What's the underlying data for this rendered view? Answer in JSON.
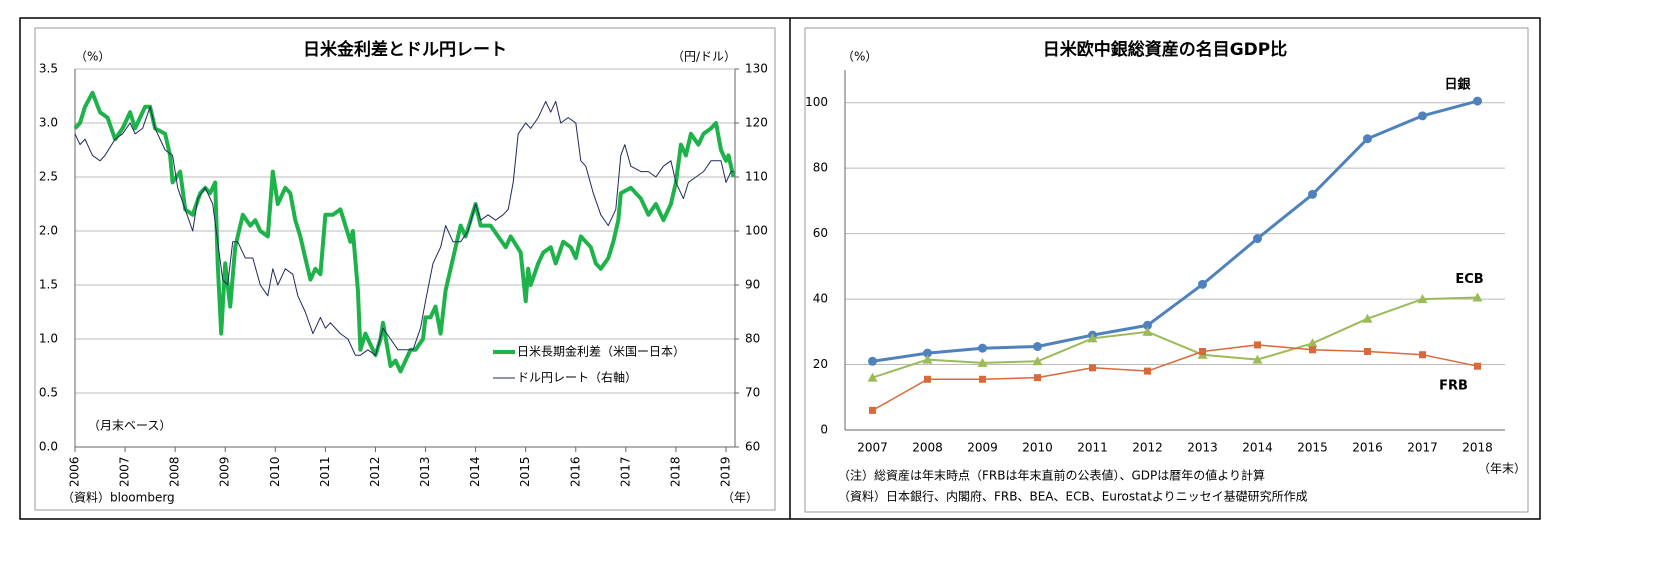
{
  "chart_data": [
    {
      "type": "line",
      "title": "日米金利差とドル円レート",
      "ylabel": "（%）",
      "y2label": "（円/ドル）",
      "xlabel": "（年）",
      "annotations": [
        "（月末ベース）",
        "（資料）bloomberg"
      ],
      "xlim": [
        2006,
        2019.18
      ],
      "xticks": [
        2006,
        2007,
        2008,
        2009,
        2010,
        2011,
        2012,
        2013,
        2014,
        2015,
        2016,
        2017,
        2018,
        2019
      ],
      "ylim": [
        0,
        3.5
      ],
      "yticks": [
        {
          "value": 0,
          "label": "0.0"
        },
        0.5,
        {
          "value": 1,
          "label": "1.0"
        },
        1.5,
        {
          "value": 2,
          "label": "2.0"
        },
        2.5,
        {
          "value": 3,
          "label": "3.0"
        },
        3.5
      ],
      "y2lim": [
        60,
        130
      ],
      "y2ticks": [
        60,
        70,
        80,
        90,
        100,
        110,
        120,
        130
      ],
      "grid": true,
      "series": [
        {
          "name": "日米長期金利差（米国ー日本）",
          "color": "#1db34a",
          "linewidth": 4,
          "axis": "y",
          "x": [
            2006.0,
            2006.1,
            2006.2,
            2006.35,
            2006.5,
            2006.65,
            2006.8,
            2006.95,
            2007.1,
            2007.2,
            2007.4,
            2007.5,
            2007.6,
            2007.8,
            2007.9,
            2007.95,
            2008.1,
            2008.2,
            2008.35,
            2008.5,
            2008.6,
            2008.7,
            2008.8,
            2008.85,
            2008.92,
            2009.0,
            2009.1,
            2009.2,
            2009.35,
            2009.5,
            2009.6,
            2009.7,
            2009.85,
            2009.95,
            2010.05,
            2010.2,
            2010.3,
            2010.4,
            2010.5,
            2010.6,
            2010.7,
            2010.8,
            2010.9,
            2011.0,
            2011.15,
            2011.3,
            2011.4,
            2011.5,
            2011.55,
            2011.65,
            2011.7,
            2011.8,
            2011.9,
            2012.0,
            2012.1,
            2012.15,
            2012.3,
            2012.4,
            2012.5,
            2012.6,
            2012.7,
            2012.8,
            2012.95,
            2013.0,
            2013.1,
            2013.2,
            2013.3,
            2013.4,
            2013.5,
            2013.6,
            2013.7,
            2013.8,
            2013.9,
            2014.0,
            2014.1,
            2014.3,
            2014.45,
            2014.6,
            2014.7,
            2014.9,
            2015.0,
            2015.05,
            2015.1,
            2015.25,
            2015.35,
            2015.5,
            2015.6,
            2015.75,
            2015.9,
            2016.0,
            2016.1,
            2016.2,
            2016.3,
            2016.4,
            2016.5,
            2016.65,
            2016.75,
            2016.85,
            2016.9,
            2017.1,
            2017.3,
            2017.45,
            2017.6,
            2017.75,
            2017.9,
            2018.0,
            2018.1,
            2018.2,
            2018.3,
            2018.45,
            2018.55,
            2018.7,
            2018.8,
            2018.9,
            2019.0,
            2019.05,
            2019.15
          ],
          "values": [
            2.95,
            3.0,
            3.15,
            3.28,
            3.1,
            3.05,
            2.85,
            2.95,
            3.1,
            2.95,
            3.15,
            3.15,
            2.95,
            2.9,
            2.7,
            2.45,
            2.55,
            2.2,
            2.15,
            2.35,
            2.4,
            2.35,
            2.45,
            1.7,
            1.05,
            1.7,
            1.3,
            1.85,
            2.15,
            2.05,
            2.1,
            2.0,
            1.95,
            2.55,
            2.25,
            2.4,
            2.35,
            2.1,
            1.95,
            1.75,
            1.55,
            1.65,
            1.6,
            2.15,
            2.15,
            2.2,
            2.05,
            1.9,
            2.0,
            1.45,
            0.9,
            1.05,
            0.95,
            0.85,
            1.0,
            1.15,
            0.75,
            0.8,
            0.7,
            0.8,
            0.9,
            0.9,
            1.0,
            1.2,
            1.2,
            1.3,
            1.05,
            1.45,
            1.65,
            1.85,
            2.05,
            1.95,
            2.1,
            2.25,
            2.05,
            2.05,
            1.95,
            1.85,
            1.95,
            1.8,
            1.35,
            1.65,
            1.5,
            1.7,
            1.8,
            1.85,
            1.7,
            1.9,
            1.85,
            1.75,
            1.95,
            1.9,
            1.85,
            1.7,
            1.65,
            1.75,
            1.9,
            2.1,
            2.35,
            2.4,
            2.3,
            2.15,
            2.25,
            2.1,
            2.25,
            2.45,
            2.8,
            2.7,
            2.9,
            2.8,
            2.9,
            2.95,
            3.0,
            2.75,
            2.65,
            2.7,
            2.5
          ]
        },
        {
          "name": "ドル円レート（右軸）",
          "color": "#1f2a5c",
          "linewidth": 1,
          "axis": "y2",
          "x": [
            2006.0,
            2006.1,
            2006.2,
            2006.35,
            2006.5,
            2006.6,
            2006.8,
            2006.95,
            2007.1,
            2007.2,
            2007.35,
            2007.5,
            2007.6,
            2007.8,
            2007.95,
            2008.05,
            2008.2,
            2008.35,
            2008.45,
            2008.6,
            2008.75,
            2008.85,
            2008.95,
            2009.05,
            2009.15,
            2009.25,
            2009.4,
            2009.55,
            2009.7,
            2009.85,
            2009.95,
            2010.05,
            2010.2,
            2010.35,
            2010.45,
            2010.6,
            2010.75,
            2010.9,
            2011.0,
            2011.1,
            2011.3,
            2011.45,
            2011.6,
            2011.7,
            2011.85,
            2012.0,
            2012.15,
            2012.3,
            2012.45,
            2012.6,
            2012.75,
            2012.9,
            2013.0,
            2013.15,
            2013.3,
            2013.4,
            2013.55,
            2013.7,
            2013.85,
            2014.0,
            2014.1,
            2014.25,
            2014.4,
            2014.55,
            2014.65,
            2014.75,
            2014.85,
            2015.0,
            2015.1,
            2015.25,
            2015.4,
            2015.5,
            2015.6,
            2015.7,
            2015.85,
            2016.0,
            2016.1,
            2016.2,
            2016.35,
            2016.5,
            2016.65,
            2016.8,
            2016.9,
            2016.98,
            2017.1,
            2017.3,
            2017.45,
            2017.6,
            2017.75,
            2017.9,
            2018.0,
            2018.15,
            2018.25,
            2018.4,
            2018.55,
            2018.7,
            2018.8,
            2018.9,
            2019.0,
            2019.1,
            2019.15
          ],
          "values": [
            118,
            116,
            117,
            114,
            113,
            114,
            117,
            118,
            120,
            118,
            119,
            123,
            119,
            115,
            114,
            108,
            104,
            100,
            106,
            108,
            105,
            98,
            91,
            90,
            98,
            98,
            95,
            95,
            90,
            88,
            93,
            90,
            93,
            92,
            88,
            85,
            81,
            84,
            82,
            83,
            81,
            80,
            77,
            77,
            78,
            77,
            82,
            80,
            78,
            78,
            78,
            82,
            87,
            94,
            97,
            101,
            98,
            98,
            100,
            105,
            102,
            103,
            102,
            103,
            104,
            109,
            118,
            120,
            119,
            121,
            124,
            122,
            124,
            120,
            121,
            120,
            113,
            112,
            107,
            103,
            101,
            104,
            114,
            116,
            112,
            111,
            111,
            110,
            112,
            113,
            109,
            106,
            109,
            110,
            111,
            113,
            113,
            113,
            109,
            111,
            111
          ]
        }
      ]
    },
    {
      "type": "line",
      "title": "日米欧中銀総資産の名目GDP比",
      "ylabel": "（%）",
      "xlabel": "（年末）",
      "annotations": [
        "（注）総資産は年末時点（FRBは年末直前の公表値）、GDPは暦年の値より計算",
        "（資料）日本銀行、内閣府、FRB、BEA、ECB、Eurostatよりニッセイ基礎研究所作成"
      ],
      "categories": [
        "2007",
        "2008",
        "2009",
        "2010",
        "2011",
        "2012",
        "2013",
        "2014",
        "2015",
        "2016",
        "2017",
        "2018"
      ],
      "ylim": [
        0,
        110
      ],
      "yticks": [
        0,
        20,
        40,
        60,
        80,
        100
      ],
      "grid": true,
      "series": [
        {
          "name": "日銀",
          "color": "#4f81bd",
          "marker": "circle",
          "linewidth": 3,
          "values": [
            21,
            23.5,
            25,
            25.5,
            29,
            32,
            44.5,
            58.5,
            72,
            89,
            96,
            100.5
          ]
        },
        {
          "name": "ECB",
          "color": "#9bbb59",
          "marker": "triangle",
          "linewidth": 2,
          "values": [
            16,
            21.5,
            20.5,
            21,
            28,
            30,
            23,
            21.5,
            26.5,
            34,
            40,
            40.5
          ]
        },
        {
          "name": "FRB",
          "color": "#d9693a",
          "marker": "square",
          "linewidth": 1.5,
          "values": [
            6,
            15.5,
            15.5,
            16,
            19,
            18,
            24,
            26,
            24.5,
            24,
            23,
            19.5
          ]
        }
      ]
    }
  ]
}
